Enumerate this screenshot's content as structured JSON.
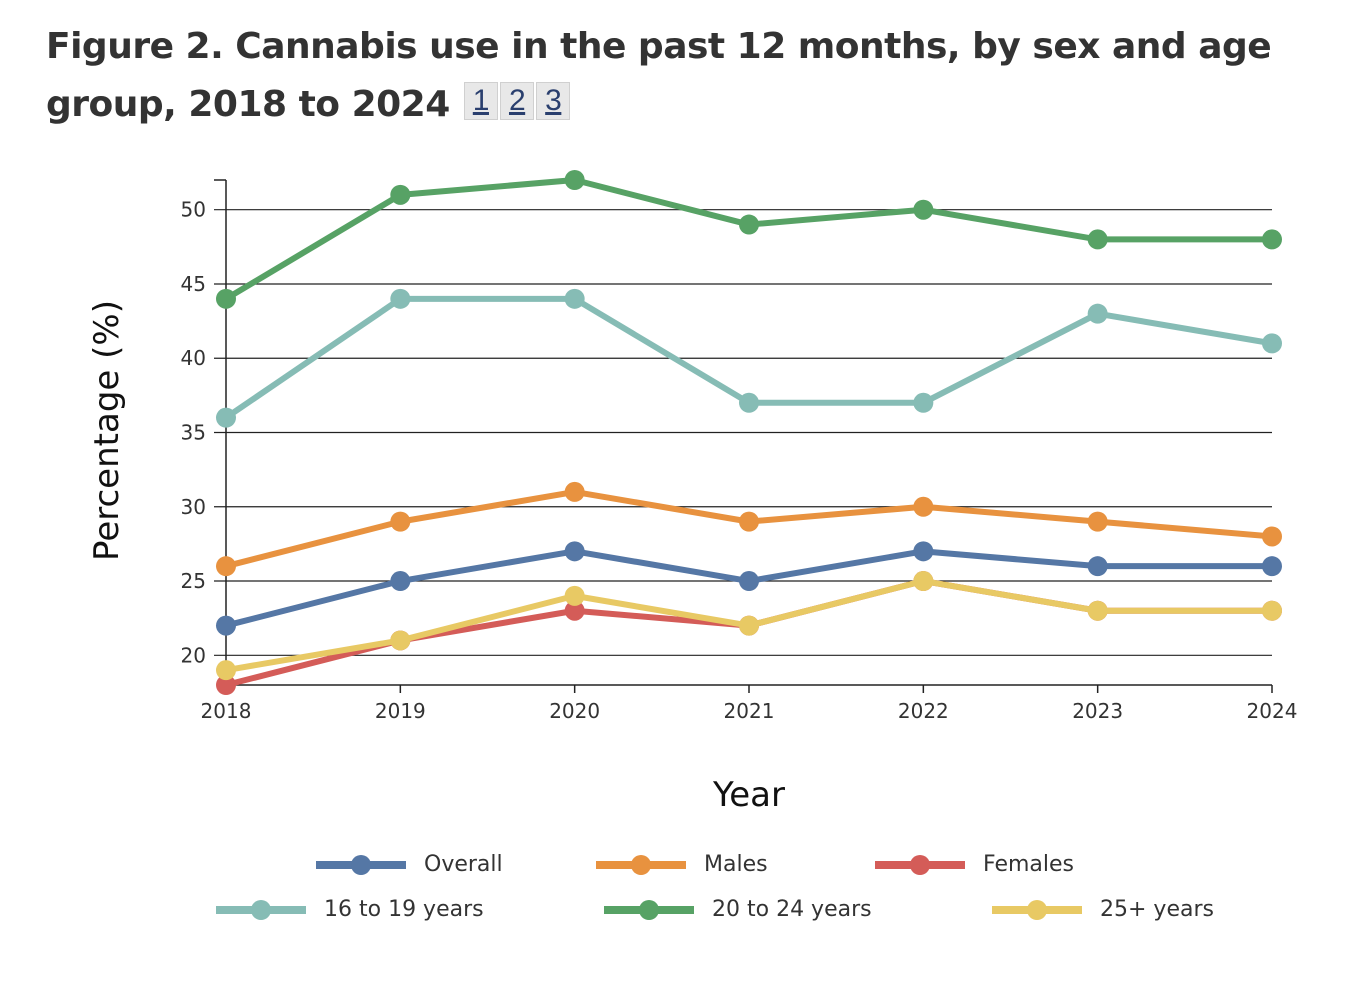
{
  "figure": {
    "title": "Figure 2. Cannabis use in the past 12 months, by sex and age group, 2018 to 2024",
    "notes": [
      "1",
      "2",
      "3"
    ]
  },
  "chart_data": {
    "type": "line",
    "title": "Figure 2. Cannabis use in the past 12 months, by sex and age group, 2018 to 2024",
    "xlabel": "Year",
    "ylabel": "Percentage (%)",
    "x": [
      "2018",
      "2019",
      "2020",
      "2021",
      "2022",
      "2023",
      "2024"
    ],
    "ylim": [
      18,
      52
    ],
    "yticks": [
      20,
      25,
      30,
      35,
      40,
      45,
      50
    ],
    "grid": "horizontal",
    "legend_position": "bottom",
    "series": [
      {
        "name": "Overall",
        "color": "#5577a5",
        "values": [
          22,
          25,
          27,
          25,
          27,
          26,
          26
        ]
      },
      {
        "name": "Males",
        "color": "#e8923f",
        "values": [
          26,
          29,
          31,
          29,
          30,
          29,
          28
        ]
      },
      {
        "name": "Females",
        "color": "#d45c58",
        "values": [
          18,
          21,
          23,
          22,
          25,
          23,
          23
        ]
      },
      {
        "name": "16 to 19 years",
        "color": "#86bcb5",
        "values": [
          36,
          44,
          44,
          37,
          37,
          43,
          41
        ]
      },
      {
        "name": "20 to 24 years",
        "color": "#57a265",
        "values": [
          44,
          51,
          52,
          49,
          50,
          48,
          48
        ]
      },
      {
        "name": "25+ years",
        "color": "#e8c964",
        "values": [
          19,
          21,
          24,
          22,
          25,
          23,
          23
        ]
      }
    ]
  }
}
